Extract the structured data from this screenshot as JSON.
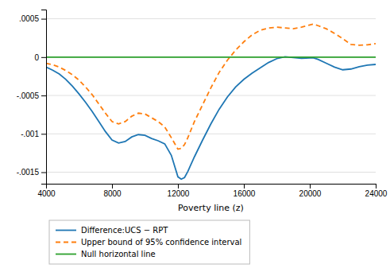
{
  "chart_data": {
    "type": "line",
    "xlabel": "Poverty line (z)",
    "xlim": [
      4000,
      24000
    ],
    "ylim": [
      -0.00165,
      0.00062
    ],
    "xticks": [
      4000,
      8000,
      12000,
      16000,
      20000,
      24000
    ],
    "yticks": [
      {
        "value": -0.0015,
        "label": "-.0015"
      },
      {
        "value": -0.001,
        "label": "-.001"
      },
      {
        "value": -0.0005,
        "label": "-.0005"
      },
      0,
      {
        "value": 0.0005,
        "label": ".0005"
      }
    ],
    "grid": true,
    "legend": "bottom",
    "series": [
      {
        "name": "Difference:UCS − RPT",
        "line_style": "solid",
        "x": [
          4000,
          4400,
          4800,
          5200,
          5600,
          6000,
          6400,
          6800,
          7200,
          7600,
          8000,
          8400,
          8800,
          9200,
          9600,
          10000,
          10400,
          10800,
          11200,
          11600,
          12000,
          12200,
          12400,
          12600,
          13000,
          13500,
          14000,
          14500,
          15000,
          15500,
          16000,
          16500,
          17000,
          17500,
          18000,
          18500,
          19000,
          19500,
          20000,
          20200,
          20500,
          21000,
          21500,
          22000,
          22500,
          23000,
          23500,
          24000
        ],
        "values": [
          -0.00013,
          -0.00017,
          -0.00022,
          -0.00029,
          -0.00038,
          -0.00048,
          -0.00059,
          -0.00071,
          -0.00084,
          -0.00097,
          -0.00108,
          -0.00112,
          -0.0011,
          -0.00104,
          -0.00101,
          -0.00102,
          -0.00106,
          -0.00109,
          -0.00113,
          -0.00128,
          -0.00156,
          -0.00159,
          -0.00157,
          -0.00149,
          -0.0013,
          -0.00108,
          -0.00087,
          -0.00068,
          -0.00052,
          -0.00039,
          -0.00029,
          -0.00021,
          -0.00014,
          -7e-05,
          -2e-05,
          5e-06,
          -5e-06,
          -1.5e-05,
          -1e-05,
          -8e-06,
          -3e-05,
          -8e-05,
          -0.00013,
          -0.000165,
          -0.000155,
          -0.000125,
          -0.000105,
          -9.5e-05
        ]
      },
      {
        "name": "Upper bound of 95% confidence interval",
        "line_style": "dashed",
        "x": [
          4000,
          4400,
          4800,
          5200,
          5600,
          6000,
          6400,
          6800,
          7200,
          7600,
          8000,
          8400,
          8800,
          9200,
          9600,
          10000,
          10400,
          10800,
          11200,
          11600,
          12000,
          12200,
          12400,
          12600,
          13000,
          13500,
          14000,
          14500,
          15000,
          15500,
          16000,
          16500,
          17000,
          17500,
          18000,
          18500,
          19000,
          19500,
          20000,
          20200,
          20500,
          21000,
          21500,
          22000,
          22500,
          23000,
          23500,
          24000
        ],
        "values": [
          -8e-05,
          -0.0001,
          -0.00013,
          -0.000175,
          -0.00023,
          -0.0003,
          -0.00039,
          -0.00049,
          -0.00061,
          -0.00073,
          -0.00084,
          -0.00087,
          -0.00084,
          -0.00077,
          -0.00073,
          -0.00074,
          -0.00079,
          -0.00084,
          -0.00091,
          -0.00105,
          -0.0012,
          -0.00119,
          -0.00114,
          -0.00105,
          -0.00084,
          -0.00062,
          -0.0004,
          -0.0002,
          -4e-05,
          9e-05,
          0.0002,
          0.00029,
          0.00035,
          0.00038,
          0.00039,
          0.00038,
          0.00037,
          0.00039,
          0.00042,
          0.00043,
          0.00041,
          0.00037,
          0.00031,
          0.00024,
          0.000165,
          0.000155,
          0.00016,
          0.000175
        ]
      },
      {
        "name": "Null horizontal line",
        "line_style": "solid",
        "x": [
          4000,
          24000
        ],
        "values": [
          0,
          0
        ]
      }
    ]
  }
}
